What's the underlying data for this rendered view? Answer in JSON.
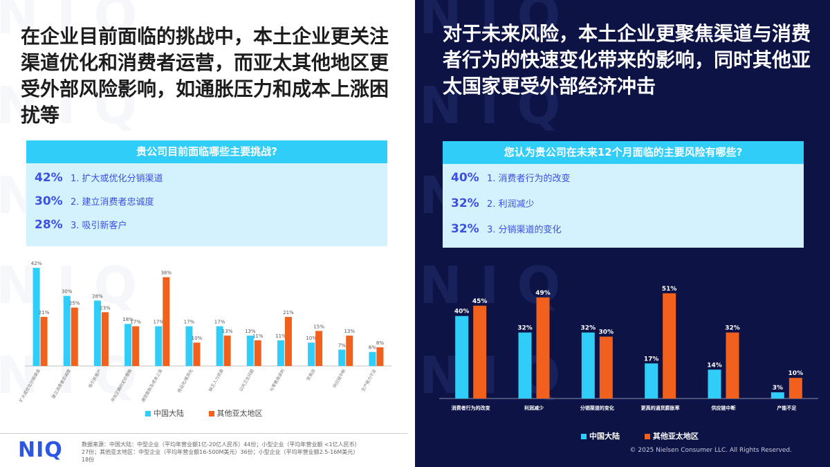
{
  "watermark": "NIQ",
  "colors": {
    "blue": "#2fcdf8",
    "orange": "#f2601d",
    "accent": "#3b4fe0",
    "navy": "#0d1345"
  },
  "left": {
    "headline": "在企业目前面临的挑战中，本土企业更关注渠道优化和消费者运营，而亚太其他地区更受外部风险影响，如通胀压力和成本上涨困扰等",
    "question": "贵公司目前面临哪些主要挑战?",
    "top3": [
      {
        "pct": "42%",
        "label": "1. 扩大或优化分销渠道"
      },
      {
        "pct": "30%",
        "label": "2. 建立消费者忠诚度"
      },
      {
        "pct": "28%",
        "label": "3. 吸引新客户"
      }
    ],
    "legend": {
      "series1": "中国大陆",
      "series2": "其他亚太地区"
    },
    "logo": "NIQ",
    "source": "数据来源：中国大陆：中型企业（平均年营业额1亿-20亿人民币）44份；小型企业（平均年营业额 <1亿人民币）27份；其他亚太地区：中型企业（平均年营业额16-500M美元）36份；小型企业（平均年营业额2.5-16M美元）18份"
  },
  "right": {
    "headline": "对于未来风险，本土企业更聚焦渠道与消费者行为的快速变化带来的影响，同时其他亚太国家更受外部经济冲击",
    "question": "您认为贵公司在未来12个月面临的主要风险有哪些?",
    "top3": [
      {
        "pct": "40%",
        "label": "1. 消费者行为的改变"
      },
      {
        "pct": "32%",
        "label": "2. 利润减少"
      },
      {
        "pct": "32%",
        "label": "3. 分销渠道的变化"
      }
    ],
    "legend": {
      "series1": "中国大陆",
      "series2": "其他亚太地区"
    },
    "copyright": "© 2025 Nielsen Consumer LLC. All Rights Reserved."
  },
  "chart_data": [
    {
      "type": "bar",
      "title": "贵公司目前面临哪些主要挑战?",
      "categories": [
        "扩大或优化分销渠道",
        "建立消费者忠诚度",
        "吸引新客户",
        "寻找正确的定价策略",
        "通货膨胀及成本上涨",
        "商品化/差异化",
        "缺乏人力资源",
        "公共卫生问题",
        "与零售商谈判",
        "贸易战",
        "供应链中断",
        "生产能力不足"
      ],
      "series": [
        {
          "name": "中国大陆",
          "values": [
            42,
            30,
            28,
            18,
            17,
            17,
            17,
            13,
            11,
            10,
            7,
            6
          ]
        },
        {
          "name": "其他亚太地区",
          "values": [
            21,
            25,
            23,
            17,
            38,
            10,
            13,
            11,
            21,
            15,
            13,
            8
          ]
        }
      ],
      "value_suffix": "%",
      "ylim": [
        0,
        45
      ],
      "grid": false,
      "legend_position": "bottom"
    },
    {
      "type": "bar",
      "title": "您认为贵公司在未来12个月面临的主要风险有哪些?",
      "categories": [
        "消费者行为的改变",
        "利润减少",
        "分销渠道的变化",
        "更高的通货膨胀率",
        "供应链中断",
        "产能不足"
      ],
      "series": [
        {
          "name": "中国大陆",
          "values": [
            40,
            32,
            32,
            17,
            14,
            3
          ]
        },
        {
          "name": "其他亚太地区",
          "values": [
            45,
            49,
            30,
            51,
            32,
            10
          ]
        }
      ],
      "value_suffix": "%",
      "ylim": [
        0,
        55
      ],
      "grid": false,
      "legend_position": "bottom"
    }
  ]
}
